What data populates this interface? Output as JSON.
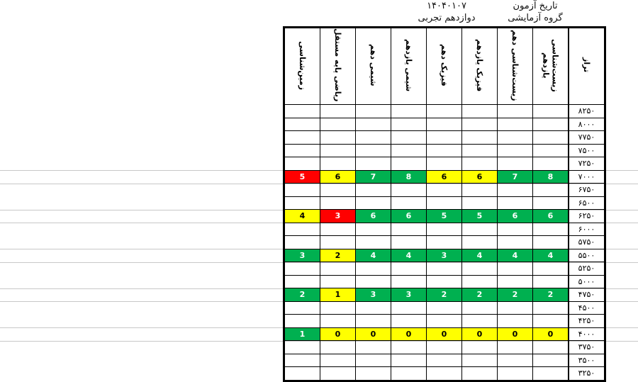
{
  "header": {
    "date_label": "تاریخ آزمون",
    "date": "۱۴۰۴۰۱۰۷",
    "group_label": "گروه آزمایشی",
    "group": "دوازدهم تجربی"
  },
  "columns": [
    "زمین‌شناسی",
    "ریاضی پایه مستقل",
    "شیمی دهم",
    "شیمی یازدهم",
    "فیزیک دهم",
    "فیزیک یازدهم",
    "زیست‌شناسی دهم",
    "زیست‌شناسی یازدهم",
    "تراز"
  ],
  "colors": {
    "red": "#ff0000",
    "yellow": "#ffff00",
    "green": "#00b050"
  },
  "rows": [
    {
      "taraz": "۸۲۵۰"
    },
    {
      "taraz": "۸۰۰۰"
    },
    {
      "taraz": "۷۷۵۰"
    },
    {
      "taraz": "۷۵۰۰"
    },
    {
      "taraz": "۷۲۵۰"
    },
    {
      "taraz": "۷۰۰۰",
      "cells": [
        [
          "5",
          "red"
        ],
        [
          "6",
          "yellow"
        ],
        [
          "7",
          "green"
        ],
        [
          "8",
          "green"
        ],
        [
          "6",
          "yellow"
        ],
        [
          "6",
          "yellow"
        ],
        [
          "7",
          "green"
        ],
        [
          "8",
          "green"
        ]
      ]
    },
    {
      "taraz": "۶۷۵۰"
    },
    {
      "taraz": "۶۵۰۰"
    },
    {
      "taraz": "۶۲۵۰",
      "cells": [
        [
          "4",
          "yellow"
        ],
        [
          "3",
          "red"
        ],
        [
          "6",
          "green"
        ],
        [
          "6",
          "green"
        ],
        [
          "5",
          "green"
        ],
        [
          "5",
          "green"
        ],
        [
          "6",
          "green"
        ],
        [
          "6",
          "green"
        ]
      ]
    },
    {
      "taraz": "۶۰۰۰"
    },
    {
      "taraz": "۵۷۵۰"
    },
    {
      "taraz": "۵۵۰۰",
      "cells": [
        [
          "3",
          "green"
        ],
        [
          "2",
          "yellow"
        ],
        [
          "4",
          "green"
        ],
        [
          "4",
          "green"
        ],
        [
          "3",
          "green"
        ],
        [
          "4",
          "green"
        ],
        [
          "4",
          "green"
        ],
        [
          "4",
          "green"
        ]
      ]
    },
    {
      "taraz": "۵۲۵۰"
    },
    {
      "taraz": "۵۰۰۰"
    },
    {
      "taraz": "۴۷۵۰",
      "cells": [
        [
          "2",
          "green"
        ],
        [
          "1",
          "yellow"
        ],
        [
          "3",
          "green"
        ],
        [
          "3",
          "green"
        ],
        [
          "2",
          "green"
        ],
        [
          "2",
          "green"
        ],
        [
          "2",
          "green"
        ],
        [
          "2",
          "green"
        ]
      ]
    },
    {
      "taraz": "۴۵۰۰"
    },
    {
      "taraz": "۴۲۵۰"
    },
    {
      "taraz": "۴۰۰۰",
      "cells": [
        [
          "1",
          "green"
        ],
        [
          "0",
          "yellow"
        ],
        [
          "0",
          "yellow"
        ],
        [
          "0",
          "yellow"
        ],
        [
          "0",
          "yellow"
        ],
        [
          "0",
          "yellow"
        ],
        [
          "0",
          "yellow"
        ],
        [
          "0",
          "yellow"
        ]
      ]
    },
    {
      "taraz": "۳۷۵۰"
    },
    {
      "taraz": "۳۵۰۰"
    },
    {
      "taraz": "۳۲۵۰"
    }
  ]
}
